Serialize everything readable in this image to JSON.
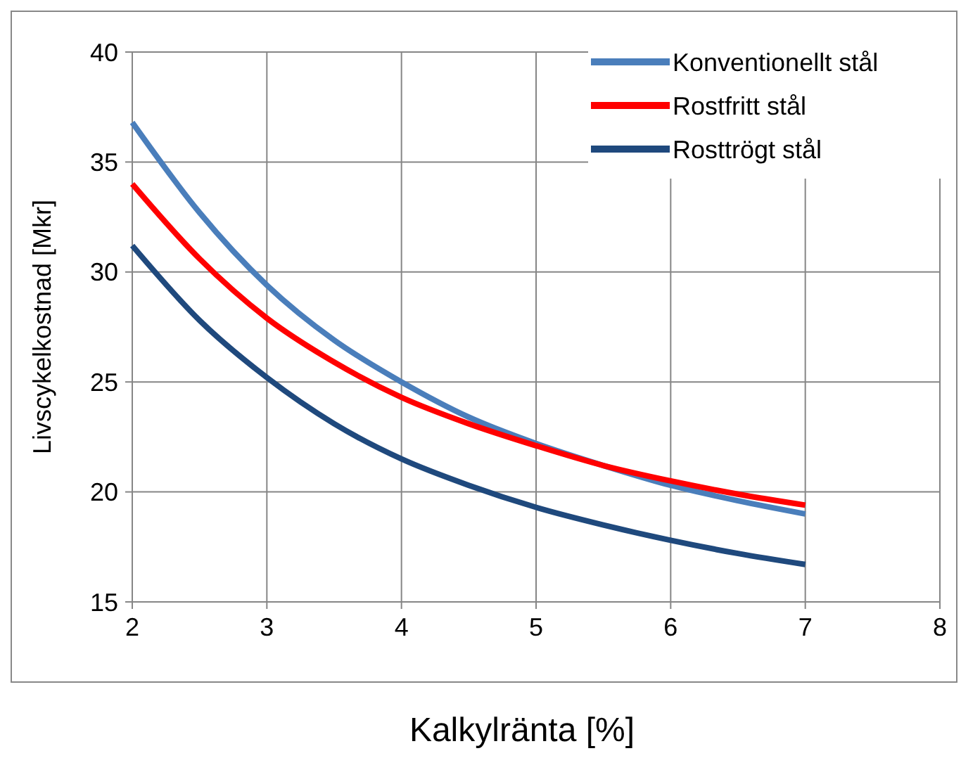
{
  "chart_data": {
    "type": "line",
    "xlabel": "Kalkylränta [%]",
    "ylabel": "Livscykelkostnad [Mkr]",
    "x": [
      2,
      2.5,
      3,
      3.5,
      4,
      4.5,
      5,
      5.5,
      6,
      6.5,
      7
    ],
    "xlim": [
      2,
      8
    ],
    "xticks": [
      2,
      3,
      4,
      5,
      6,
      7,
      8
    ],
    "ylim": [
      15,
      40
    ],
    "yticks": [
      15,
      20,
      25,
      30,
      35,
      40
    ],
    "grid": true,
    "legend": "top right",
    "marker": "none",
    "line_style": "solid",
    "series": [
      {
        "name": "Konventionellt stål",
        "color": "#4a7ebb",
        "values": [
          36.8,
          32.7,
          29.4,
          26.9,
          25.0,
          23.4,
          22.2,
          21.2,
          20.3,
          19.6,
          19.0
        ]
      },
      {
        "name": "Rostfritt stål",
        "color": "#ff0000",
        "values": [
          34.0,
          30.6,
          27.9,
          25.9,
          24.3,
          23.1,
          22.1,
          21.2,
          20.5,
          19.9,
          19.4
        ]
      },
      {
        "name": "Rosttrögt stål",
        "color": "#1f497d",
        "values": [
          31.2,
          27.8,
          25.2,
          23.1,
          21.5,
          20.3,
          19.3,
          18.5,
          17.8,
          17.2,
          16.7
        ]
      }
    ]
  }
}
